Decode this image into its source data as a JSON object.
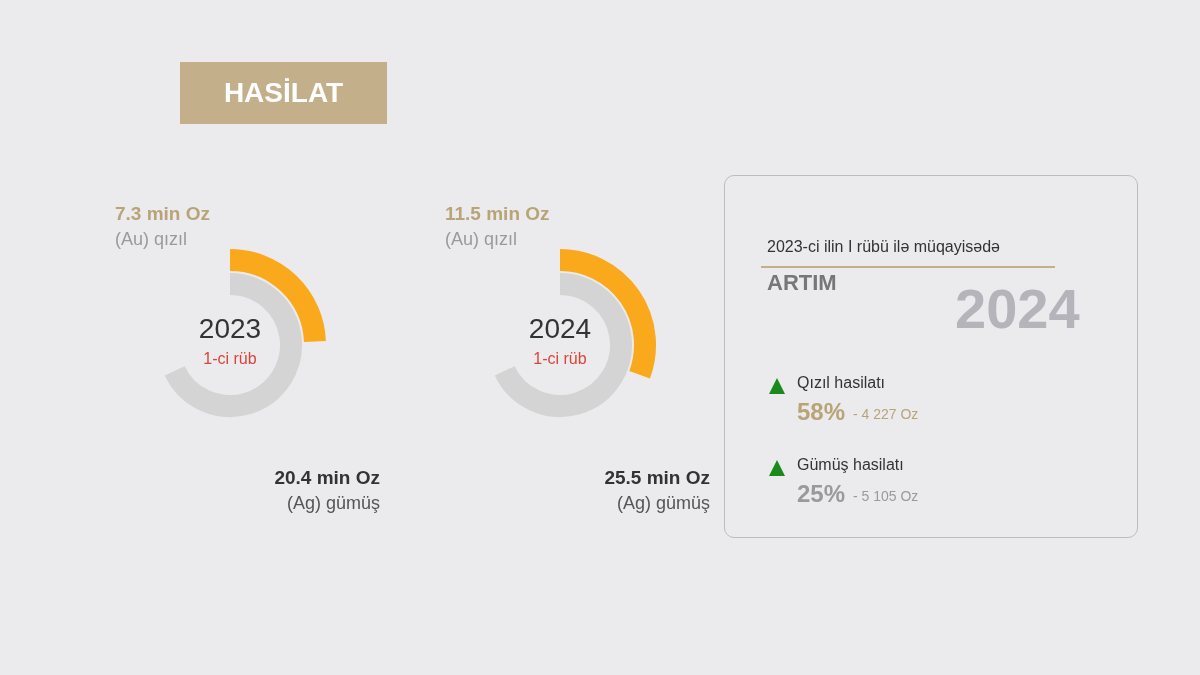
{
  "chart_data": [
    {
      "type": "other",
      "title": "HASİLAT"
    },
    {
      "type": "other",
      "title": "2023",
      "subtitle": "1-ci rüb",
      "categories": [
        "(Au) qızıl",
        "(Ag) gümüş"
      ],
      "values": [
        7.3,
        20.4
      ],
      "value_labels": [
        "7.3 min Oz",
        "20.4 min Oz"
      ],
      "colors": [
        "#f9a91b",
        "#d4d4d4"
      ]
    },
    {
      "type": "other",
      "title": "2024",
      "subtitle": "1-ci rüb",
      "categories": [
        "(Au) qızıl",
        "(Ag) gümüş"
      ],
      "values": [
        11.5,
        25.5
      ],
      "value_labels": [
        "11.5 min Oz",
        "25.5 min Oz"
      ],
      "colors": [
        "#f9a91b",
        "#d4d4d4"
      ]
    },
    {
      "type": "other",
      "title": "2023-ci ilin I rübü ilə müqayisədə",
      "subtitle": "ARTIM",
      "annotations": [
        "2024",
        "Qızıl hasilatı",
        "58%",
        "- 4 227 Oz",
        "Gümüş hasilatı",
        "25%",
        "- 5 105 Oz"
      ]
    }
  ]
}
